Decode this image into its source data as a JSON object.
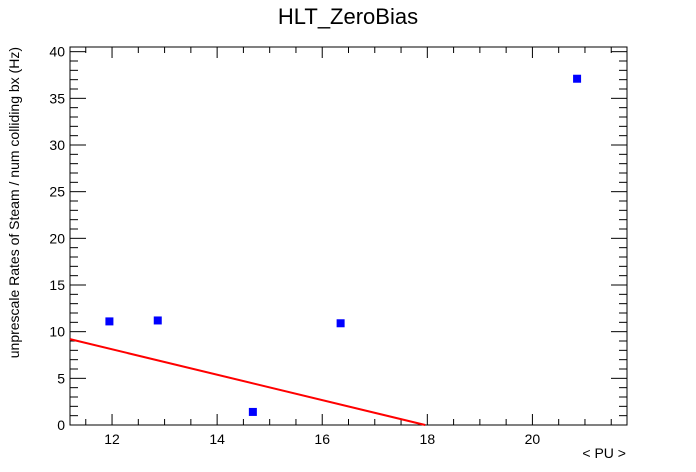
{
  "chart_data": {
    "type": "scatter",
    "title": "HLT_ZeroBias",
    "xlabel": "< PU >",
    "ylabel": "unprescale Rates of Steam / num colliding bx (Hz)",
    "xlim": [
      11.2,
      21.8
    ],
    "ylim": [
      0,
      40.5
    ],
    "xticks": [
      12,
      14,
      16,
      18,
      20
    ],
    "yticks": [
      0,
      5,
      10,
      15,
      20,
      25,
      30,
      35,
      40
    ],
    "grid": false,
    "series": [
      {
        "marker": "square",
        "color": "#0000ff",
        "points": [
          {
            "x": 11.95,
            "y": 11.1
          },
          {
            "x": 12.87,
            "y": 11.2
          },
          {
            "x": 14.68,
            "y": 1.4
          },
          {
            "x": 16.35,
            "y": 10.9
          },
          {
            "x": 20.85,
            "y": 37.1
          }
        ]
      }
    ],
    "fit_line": {
      "color": "#ff0000",
      "x": [
        11.2,
        17.96
      ],
      "y": [
        9.2,
        0
      ]
    }
  }
}
